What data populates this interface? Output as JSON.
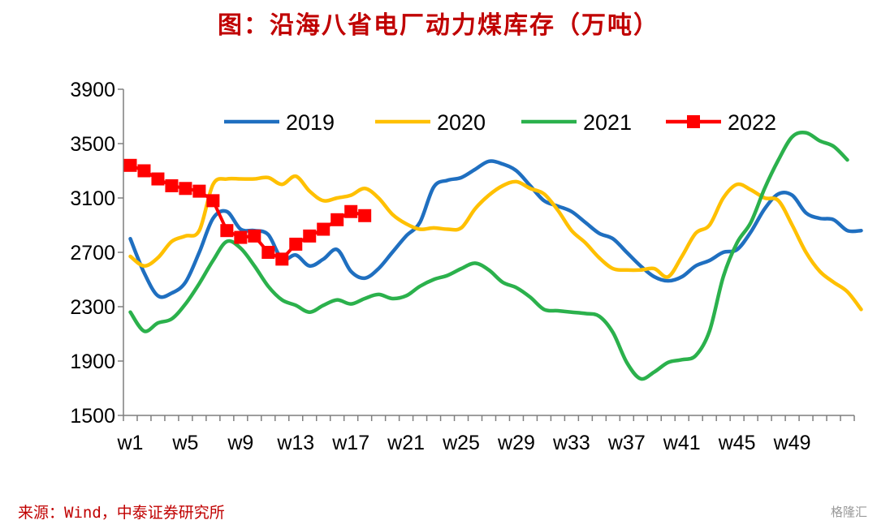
{
  "title": "图：沿海八省电厂动力煤库存（万吨）",
  "source": "来源：Wind，中泰证券研究所",
  "watermark": "格隆汇",
  "chart_data": {
    "type": "line",
    "title": "图：沿海八省电厂动力煤库存（万吨）",
    "xlabel": "",
    "ylabel": "",
    "ylim": [
      1500,
      3900
    ],
    "yticks": [
      1500,
      1900,
      2300,
      2700,
      3100,
      3500,
      3900
    ],
    "x_tick_labels": [
      "w1",
      "w5",
      "w9",
      "w13",
      "w17",
      "w21",
      "w25",
      "w29",
      "w33",
      "w37",
      "w41",
      "w45",
      "w49"
    ],
    "x_count": 53,
    "legend_position": "top",
    "grid": false,
    "series": [
      {
        "name": "2019",
        "color": "#1f6fc0",
        "marker": "none",
        "values": [
          2800,
          2550,
          2380,
          2400,
          2480,
          2700,
          2950,
          3000,
          2870,
          2860,
          2830,
          2650,
          2680,
          2600,
          2650,
          2720,
          2560,
          2510,
          2580,
          2700,
          2820,
          2920,
          3180,
          3230,
          3250,
          3310,
          3370,
          3350,
          3300,
          3190,
          3080,
          3040,
          3000,
          2920,
          2840,
          2800,
          2700,
          2600,
          2520,
          2490,
          2520,
          2600,
          2640,
          2700,
          2720,
          2850,
          3020,
          3130,
          3120,
          2990,
          2950,
          2940,
          2860,
          2860
        ]
      },
      {
        "name": "2020",
        "color": "#ffc000",
        "marker": "none",
        "values": [
          2670,
          2600,
          2660,
          2780,
          2820,
          2860,
          3200,
          3240,
          3240,
          3240,
          3250,
          3200,
          3260,
          3150,
          3080,
          3100,
          3120,
          3170,
          3100,
          2980,
          2910,
          2870,
          2880,
          2870,
          2880,
          3020,
          3120,
          3190,
          3220,
          3170,
          3130,
          3010,
          2860,
          2770,
          2660,
          2580,
          2570,
          2570,
          2580,
          2520,
          2670,
          2840,
          2900,
          3100,
          3200,
          3160,
          3100,
          3080,
          2900,
          2700,
          2560,
          2480,
          2410,
          2280
        ]
      },
      {
        "name": "2021",
        "color": "#2bb14c",
        "marker": "none",
        "values": [
          2260,
          2120,
          2180,
          2210,
          2320,
          2470,
          2640,
          2780,
          2730,
          2600,
          2450,
          2350,
          2310,
          2260,
          2310,
          2350,
          2320,
          2360,
          2390,
          2360,
          2380,
          2450,
          2500,
          2530,
          2580,
          2620,
          2570,
          2480,
          2440,
          2370,
          2280,
          2270,
          2260,
          2250,
          2230,
          2110,
          1890,
          1770,
          1820,
          1890,
          1910,
          1940,
          2120,
          2520,
          2770,
          2920,
          3170,
          3380,
          3550,
          3580,
          3520,
          3480,
          3380
        ]
      },
      {
        "name": "2022",
        "color": "#ff0000",
        "marker": "square",
        "values": [
          3340,
          3300,
          3240,
          3190,
          3170,
          3150,
          3080,
          2860,
          2810,
          2820,
          2700,
          2650,
          2760,
          2820,
          2870,
          2940,
          3000,
          2970
        ]
      }
    ]
  }
}
